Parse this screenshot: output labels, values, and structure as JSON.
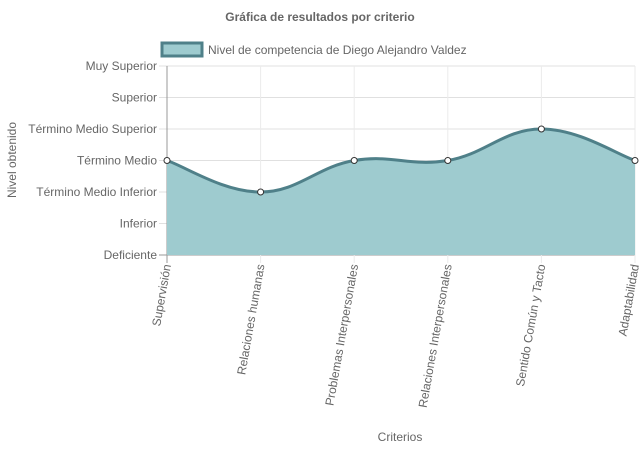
{
  "chart_data": {
    "type": "area",
    "title": "Gráfica de resultados por criterio",
    "xlabel": "Criterios",
    "ylabel": "Nivel obtenido",
    "categories": [
      "Supervisión",
      "Relaciones humanas",
      "Problemas Interpersonales",
      "Relaciones Interpersonales",
      "Sentido Común y Tacto",
      "Adaptabilidad"
    ],
    "y_levels": [
      "Deficiente",
      "Inferior",
      "Término Medio Inferior",
      "Término Medio",
      "Término Medio Superior",
      "Superior",
      "Muy Superior"
    ],
    "ylim": [
      0,
      6
    ],
    "series": [
      {
        "name": "Nivel de competencia de Diego Alejandro Valdez",
        "values": [
          3,
          2,
          3,
          3,
          4,
          3
        ]
      }
    ],
    "colors": {
      "fill": "#9ecbcf",
      "line": "#4f8089",
      "point_fill": "#ffffff",
      "grid": "#e6e6e6",
      "axis": "#999999"
    },
    "grid": true,
    "legend_position": "top"
  }
}
